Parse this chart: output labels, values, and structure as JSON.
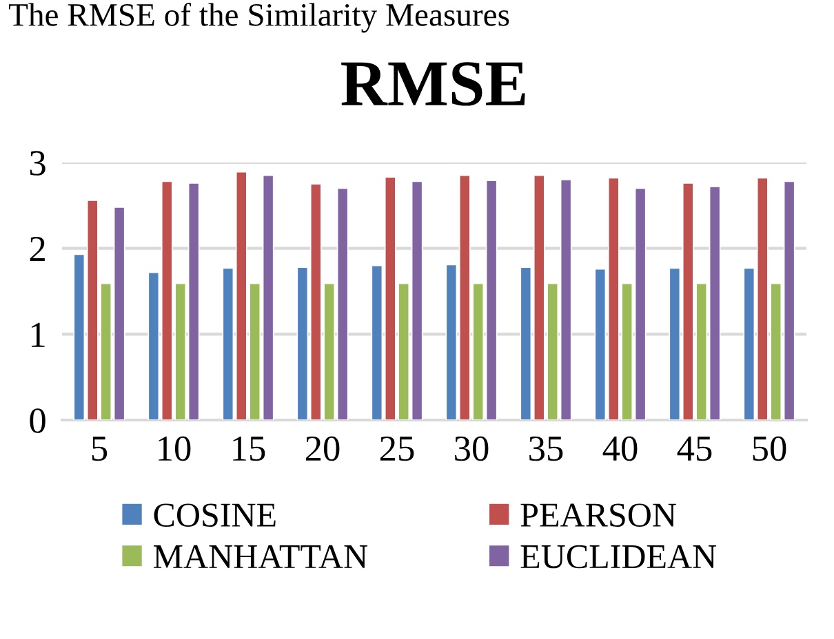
{
  "chart_data": {
    "type": "bar",
    "title": "RMSE",
    "annotations": [
      "The RMSE of the Similarity Measures"
    ],
    "categories": [
      "5",
      "10",
      "15",
      "20",
      "25",
      "30",
      "35",
      "40",
      "45",
      "50"
    ],
    "series": [
      {
        "name": "COSINE",
        "color": "#4f81bd",
        "values": [
          1.93,
          1.72,
          1.77,
          1.78,
          1.8,
          1.81,
          1.78,
          1.76,
          1.77,
          1.77
        ]
      },
      {
        "name": "PEARSON",
        "color": "#c0504d",
        "values": [
          2.56,
          2.78,
          2.89,
          2.75,
          2.83,
          2.85,
          2.85,
          2.82,
          2.76,
          2.82
        ]
      },
      {
        "name": "MANHATTAN",
        "color": "#9bbb59",
        "values": [
          1.59,
          1.59,
          1.59,
          1.59,
          1.59,
          1.59,
          1.59,
          1.59,
          1.59,
          1.59
        ]
      },
      {
        "name": "EUCLIDEAN",
        "color": "#8064a2",
        "values": [
          2.48,
          2.76,
          2.85,
          2.7,
          2.78,
          2.79,
          2.8,
          2.7,
          2.72,
          2.78
        ]
      }
    ],
    "ylim": [
      0,
      3
    ],
    "yticks": [
      0,
      1,
      2,
      3
    ],
    "grid": "y",
    "legend": "bottom"
  }
}
